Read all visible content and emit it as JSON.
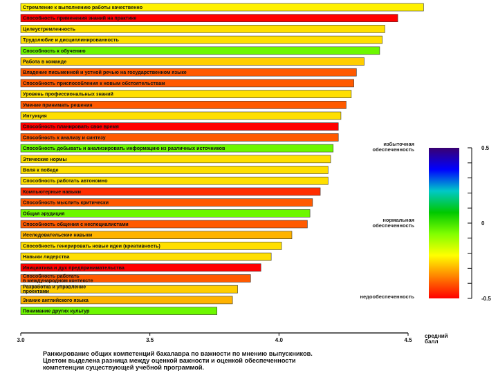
{
  "chart_data": {
    "type": "bar",
    "orientation": "horizontal",
    "title": "",
    "xlabel": "средний балл",
    "xlim": [
      3.0,
      4.5
    ],
    "xticks": [
      "3.0",
      "3.5",
      "4.0",
      "4.5"
    ],
    "categories": [
      "Стремление к выполнению работы качественно",
      "Способность применения знаний на практике",
      "Целеустремленность",
      "Трудолюбие и дисциплинированность",
      "Способность к обучению",
      "Работа в команде",
      "Владение письменной и устной речью на государственном языке",
      "Способность приспособления к новым обстоятельствам",
      "Уровень профессиональных знаний",
      "Умение принимать решения",
      "Интуиция",
      "Способность планировать свое время",
      "Способность к анализу и синтезу",
      "Способность добывать и анализировать информацию из различных источников",
      "Этические нормы",
      "Воля к победе",
      "Способность работать автономно",
      "Компьютерные навыки",
      "Способность мыслить критически",
      "Общая эрудиция",
      "Способность общения с неспециалистами",
      "Исследовательские навыки",
      "Способность генерировать новые идеи (креативность)",
      "Навыки лидерства",
      "Инициатива и дух предпринимательства",
      "Способность работать в международном контексте",
      "Разработка и управление проектами",
      "Знание английского языка",
      "Понимание других культур"
    ],
    "values": [
      4.56,
      4.46,
      4.41,
      4.4,
      4.39,
      4.33,
      4.3,
      4.29,
      4.28,
      4.26,
      4.24,
      4.23,
      4.23,
      4.21,
      4.2,
      4.19,
      4.19,
      4.16,
      4.13,
      4.12,
      4.11,
      4.05,
      4.01,
      3.97,
      3.93,
      3.89,
      3.84,
      3.82,
      3.76
    ],
    "color_values": [
      -0.23,
      -0.5,
      -0.25,
      -0.25,
      -0.05,
      -0.27,
      -0.4,
      -0.4,
      -0.25,
      -0.4,
      -0.25,
      -0.5,
      -0.4,
      -0.05,
      -0.25,
      -0.25,
      -0.25,
      -0.45,
      -0.4,
      -0.05,
      -0.4,
      -0.3,
      -0.25,
      -0.25,
      -0.5,
      -0.4,
      -0.27,
      -0.3,
      -0.05
    ],
    "colorbar": {
      "range": [
        -0.5,
        0.5
      ],
      "ticks": [
        "0.5",
        "0",
        "-0.5"
      ],
      "zone_labels": [
        "избыточная обеспеченность",
        "нормальная обеспеченность",
        "недообеспеченность"
      ],
      "stops": [
        "#ff0000",
        "#ff8000",
        "#ffff00",
        "#80ff00",
        "#00c800",
        "#00c8c8",
        "#0000ff",
        "#3a0070"
      ]
    },
    "caption": [
      "Ранжирование общих компетенций бакалавра по важности по мнению выпускников.",
      "Цветом выделена разница между оценкой важности и оценкой обеспеченности",
      "компетенции существующей учебной программой."
    ]
  }
}
